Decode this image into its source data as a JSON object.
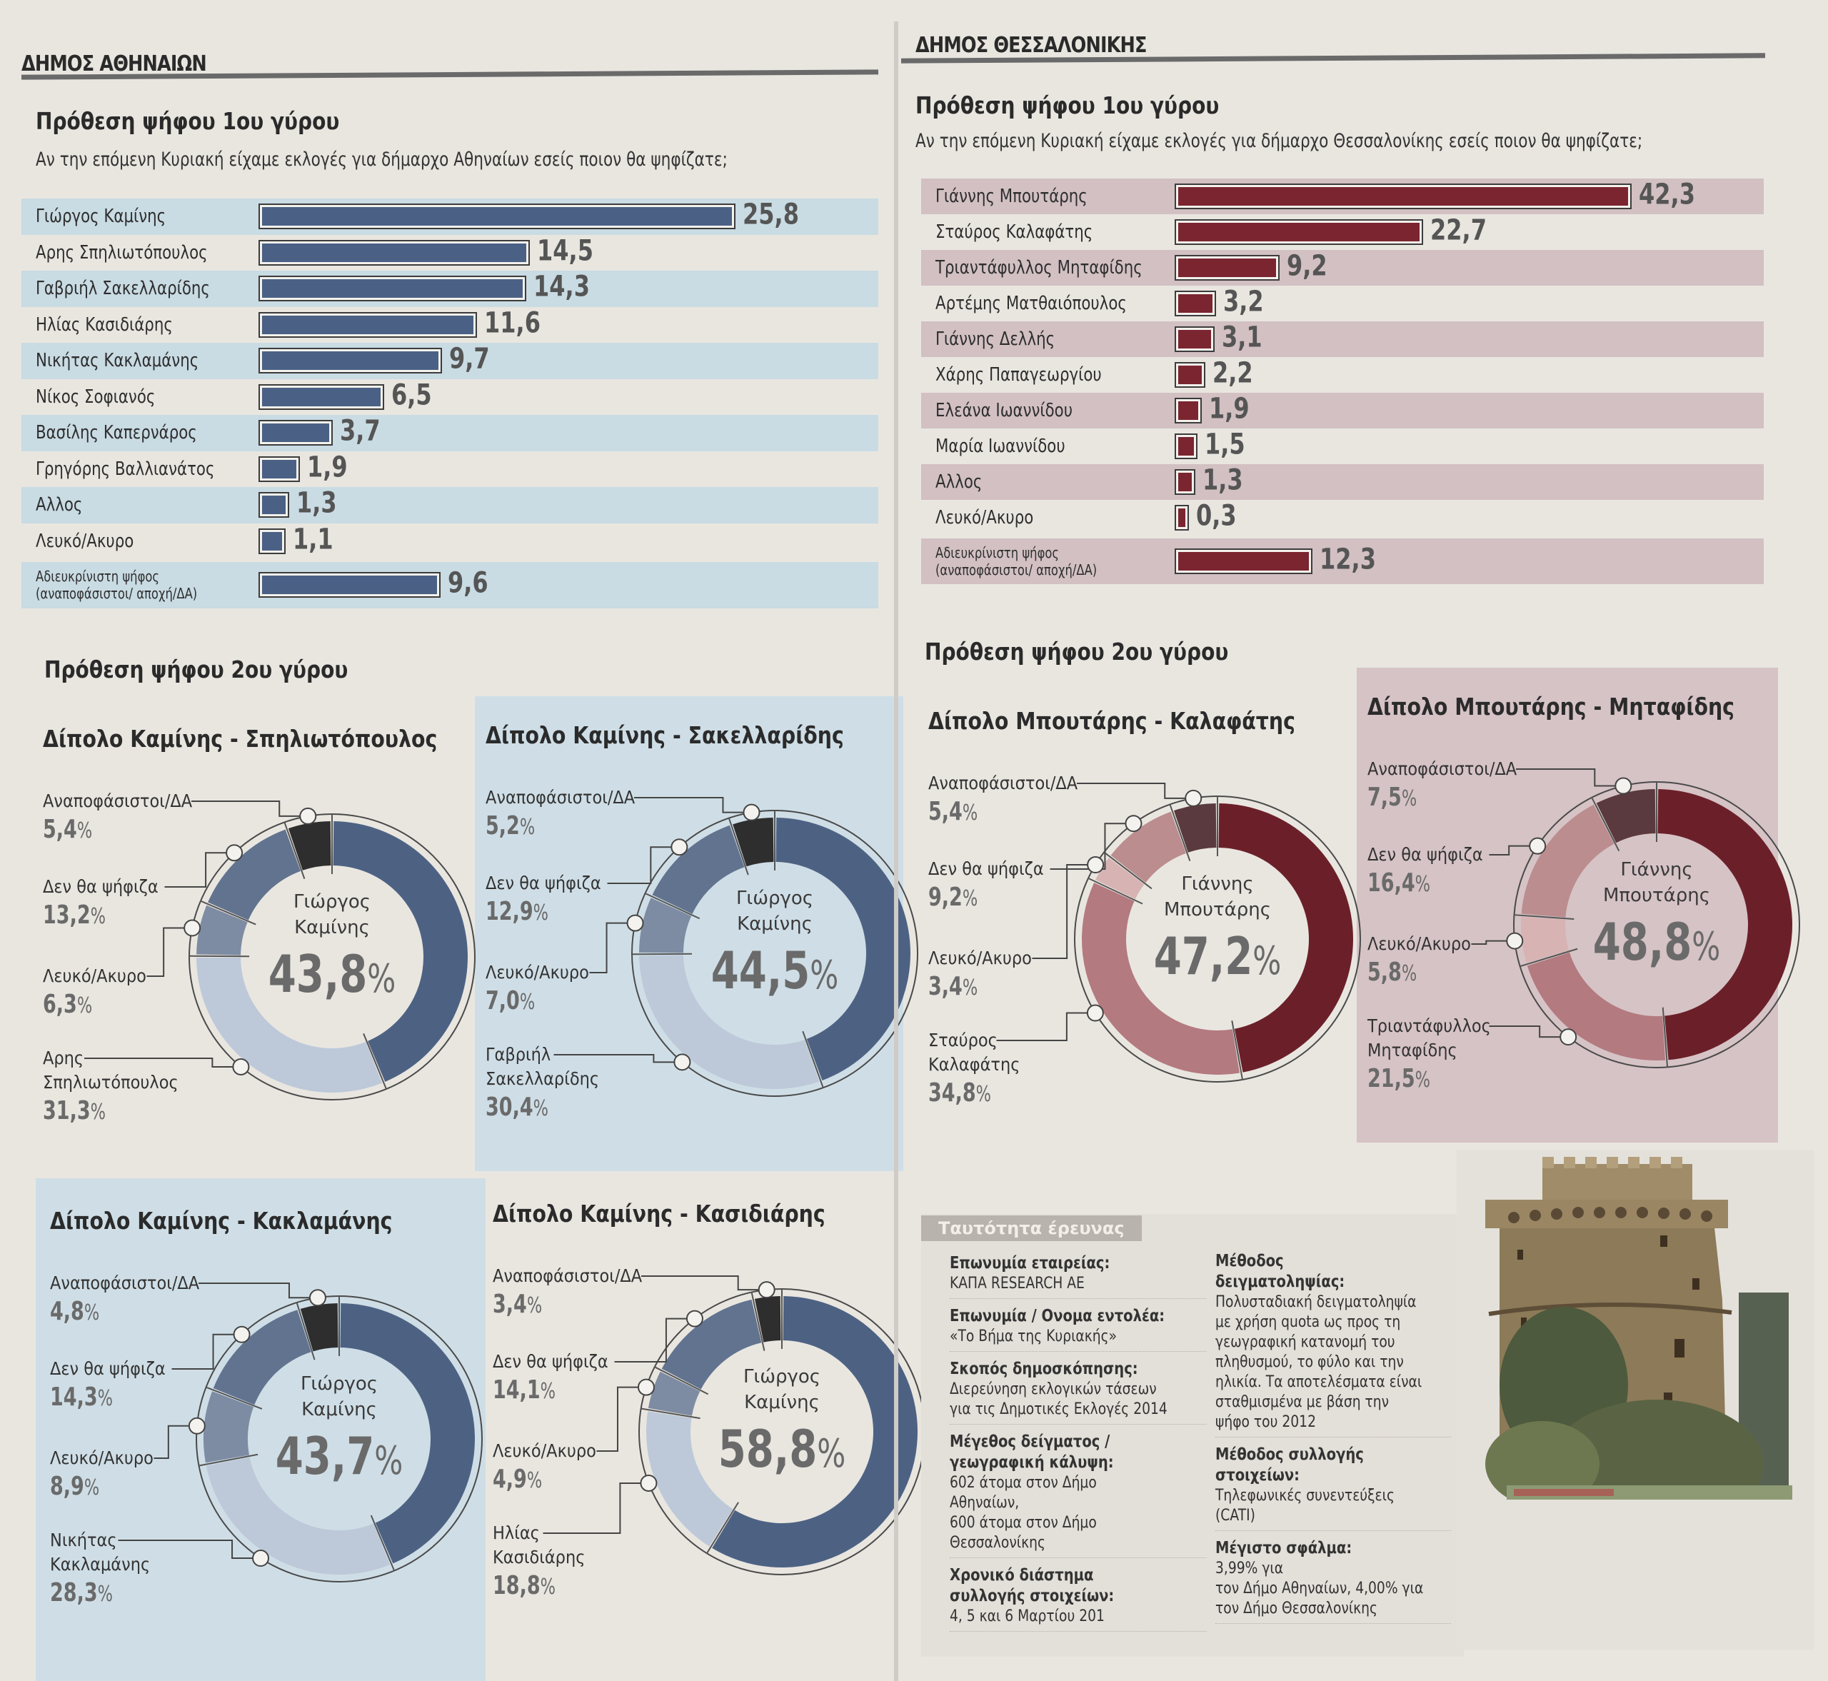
{
  "athens": {
    "section_title": "ΔΗΜΟΣ ΑΘΗΝΑΙΩΝ",
    "round1": {
      "heading": "Πρόθεση ψήφου 1ου γύρου",
      "question": "Αν την επόμενη Κυριακή είχαμε εκλογές για δήμαρχο Αθηναίων εσείς ποιον θα ψηφίζατε;"
    },
    "round2_heading": "Πρόθεση ψήφου 2ου γύρου",
    "bar_color": "#4a6185",
    "stripe_color": "#c9dbe3"
  },
  "thessaloniki": {
    "section_title": "ΔΗΜΟΣ ΘΕΣΣΑΛΟΝΙΚΗΣ",
    "round1": {
      "heading": "Πρόθεση ψήφου 1ου γύρου",
      "question": "Αν την επόμενη Κυριακή είχαμε εκλογές για δήμαρχο Θεσσαλονίκης εσείς ποιον θα ψηφίζατε;"
    },
    "round2_heading": "Πρόθεση ψήφου 2ου γύρου",
    "bar_color": "#7a2530",
    "stripe_color": "#d2c0c3"
  },
  "chart_data": [
    {
      "id": "athens-round1",
      "type": "bar",
      "orientation": "horizontal",
      "title": "Πρόθεση ψήφου 1ου γύρου",
      "subtitle": "Αν την επόμενη Κυριακή είχαμε εκλογές για δήμαρχο Αθηναίων εσείς ποιον θα ψηφίζατε;",
      "categories": [
        "Γιώργος Καμίνης",
        "Αρης Σπηλιωτόπουλος",
        "Γαβριήλ Σακελλαρίδης",
        "Ηλίας Κασιδιάρης",
        "Νικήτας Κακλαμάνης",
        "Νίκος Σοφιανός",
        "Βασίλης Καπερνάρος",
        "Γρηγόρης Βαλλιανάτος",
        "Αλλος",
        "Λευκό/Ακυρο",
        "Αδιευκρίνιστη ψήφος\n(αναποφάσιστοι/ αποχή/ΔΑ)"
      ],
      "values": [
        25.8,
        14.5,
        14.3,
        11.6,
        9.7,
        6.5,
        3.7,
        1.9,
        1.3,
        1.1,
        9.6
      ],
      "value_labels": [
        "25,8",
        "14,5",
        "14,3",
        "11,6",
        "9,7",
        "6,5",
        "3,7",
        "1,9",
        "1,3",
        "1,1",
        "9,6"
      ],
      "xlabel": "",
      "ylabel": "",
      "xlim": [
        0,
        30
      ]
    },
    {
      "id": "thessaloniki-round1",
      "type": "bar",
      "orientation": "horizontal",
      "title": "Πρόθεση ψήφου 1ου γύρου",
      "subtitle": "Αν την επόμενη Κυριακή είχαμε εκλογές για δήμαρχο Θεσσαλονίκης εσείς ποιον θα ψηφίζατε;",
      "categories": [
        "Γιάννης Μπουτάρης",
        "Σταύρος Καλαφάτης",
        "Τριαντάφυλλος Μηταφίδης",
        "Αρτέμης Ματθαιόπουλος",
        "Γιάννης Δελλής",
        "Χάρης Παπαγεωργίου",
        "Ελεάνα Ιωαννίδου",
        "Μαρία Ιωαννίδου",
        "Αλλος",
        "Λευκό/Ακυρο",
        "Αδιευκρίνιστη ψήφος\n(αναποφάσιστοι/ αποχή/ΔΑ)"
      ],
      "values": [
        42.3,
        22.7,
        9.2,
        3.2,
        3.1,
        2.2,
        1.9,
        1.5,
        1.3,
        0.3,
        12.3
      ],
      "value_labels": [
        "42,3",
        "22,7",
        "9,2",
        "3,2",
        "3,1",
        "2,2",
        "1,9",
        "1,5",
        "1,3",
        "0,3",
        "12,3"
      ],
      "xlabel": "",
      "ylabel": "",
      "xlim": [
        0,
        48
      ]
    },
    {
      "id": "athens-kaminis-spiliotopoulos",
      "type": "pie",
      "donut": true,
      "title": "Δίπολο Καμίνης - Σπηλιωτόπουλος",
      "center_label": "Γιώργος\nΚαμίνης",
      "center_value": "43,8",
      "segments": [
        {
          "label": "Γιώργος Καμίνης",
          "value": 43.8,
          "color": "#4d6283"
        },
        {
          "label": "Αρης\nΣπηλιωτόπουλος",
          "value": 31.3,
          "display": "31,3",
          "color": "#bdc9d9"
        },
        {
          "label": "Λευκό/Ακυρο",
          "value": 6.3,
          "display": "6,3",
          "color": "#7d8ca2"
        },
        {
          "label": "Δεν θα ψήφιζα",
          "value": 13.2,
          "display": "13,2",
          "color": "#61738f"
        },
        {
          "label": "Αναποφάσιστοι/ΔΑ",
          "value": 5.4,
          "display": "5,4",
          "color": "#2e2e2e"
        }
      ]
    },
    {
      "id": "athens-kaminis-sakellaridis",
      "type": "pie",
      "donut": true,
      "title": "Δίπολο Καμίνης - Σακελλαρίδης",
      "center_label": "Γιώργος\nΚαμίνης",
      "center_value": "44,5",
      "segments": [
        {
          "label": "Γιώργος Καμίνης",
          "value": 44.5,
          "color": "#4d6283"
        },
        {
          "label": "Γαβριήλ\nΣακελλαρίδης",
          "value": 30.4,
          "display": "30,4",
          "color": "#bdc9d9"
        },
        {
          "label": "Λευκό/Ακυρο",
          "value": 7.0,
          "display": "7,0",
          "color": "#7d8ca2"
        },
        {
          "label": "Δεν θα ψήφιζα",
          "value": 12.9,
          "display": "12,9",
          "color": "#61738f"
        },
        {
          "label": "Αναποφάσιστοι/ΔΑ",
          "value": 5.2,
          "display": "5,2",
          "color": "#2e2e2e"
        }
      ]
    },
    {
      "id": "athens-kaminis-kaklamanis",
      "type": "pie",
      "donut": true,
      "title": "Δίπολο Καμίνης - Κακλαμάνης",
      "center_label": "Γιώργος\nΚαμίνης",
      "center_value": "43,7",
      "segments": [
        {
          "label": "Γιώργος Καμίνης",
          "value": 43.7,
          "color": "#4d6283"
        },
        {
          "label": "Νικήτας\nΚακλαμάνης",
          "value": 28.3,
          "display": "28,3",
          "color": "#bdc9d9"
        },
        {
          "label": "Λευκό/Ακυρο",
          "value": 8.9,
          "display": "8,9",
          "color": "#7d8ca2"
        },
        {
          "label": "Δεν θα ψήφιζα",
          "value": 14.3,
          "display": "14,3",
          "color": "#61738f"
        },
        {
          "label": "Αναποφάσιστοι/ΔΑ",
          "value": 4.8,
          "display": "4,8",
          "color": "#2e2e2e"
        }
      ]
    },
    {
      "id": "athens-kaminis-kasidiaris",
      "type": "pie",
      "donut": true,
      "title": "Δίπολο Καμίνης - Κασιδιάρης",
      "center_label": "Γιώργος\nΚαμίνης",
      "center_value": "58,8",
      "segments": [
        {
          "label": "Γιώργος Καμίνης",
          "value": 58.8,
          "color": "#4d6283"
        },
        {
          "label": "Ηλίας\nΚασιδιάρης",
          "value": 18.8,
          "display": "18,8",
          "color": "#bdc9d9"
        },
        {
          "label": "Λευκό/Ακυρο",
          "value": 4.9,
          "display": "4,9",
          "color": "#7d8ca2"
        },
        {
          "label": "Δεν θα ψήφιζα",
          "value": 14.1,
          "display": "14,1",
          "color": "#61738f"
        },
        {
          "label": "Αναποφάσιστοι/ΔΑ",
          "value": 3.4,
          "display": "3,4",
          "color": "#2e2e2e"
        }
      ]
    },
    {
      "id": "thess-boutaris-kalafatis",
      "type": "pie",
      "donut": true,
      "title": "Δίπολο Μπουτάρης - Καλαφάτης",
      "center_label": "Γιάννης\nΜπουτάρης",
      "center_value": "47,2",
      "segments": [
        {
          "label": "Γιάννης Μπουτάρης",
          "value": 47.2,
          "color": "#6b2029"
        },
        {
          "label": "Σταύρος\nΚαλαφάτης",
          "value": 34.8,
          "display": "34,8",
          "color": "#b37a80"
        },
        {
          "label": "Λευκό/Ακυρο",
          "value": 3.4,
          "display": "3,4",
          "color": "#d8b3b4"
        },
        {
          "label": "Δεν θα ψήφιζα",
          "value": 9.2,
          "display": "9,2",
          "color": "#bb8d8f"
        },
        {
          "label": "Αναποφάσιστοι/ΔΑ",
          "value": 5.4,
          "display": "5,4",
          "color": "#5a3a3e"
        }
      ]
    },
    {
      "id": "thess-boutaris-mitafidis",
      "type": "pie",
      "donut": true,
      "title": "Δίπολο Μπουτάρης - Μηταφίδης",
      "center_label": "Γιάννης\nΜπουτάρης",
      "center_value": "48,8",
      "segments": [
        {
          "label": "Γιάννης Μπουτάρης",
          "value": 48.8,
          "color": "#6b2029"
        },
        {
          "label": "Τριαντάφυλλος\nΜηταφίδης",
          "value": 21.5,
          "display": "21,5",
          "color": "#b37a80"
        },
        {
          "label": "Λευκό/Ακυρο",
          "value": 5.8,
          "display": "5,8",
          "color": "#d8b3b4"
        },
        {
          "label": "Δεν θα ψήφιζα",
          "value": 16.4,
          "display": "16,4",
          "color": "#bb8d8f"
        },
        {
          "label": "Αναποφάσιστοι/ΔΑ",
          "value": 7.5,
          "display": "7,5",
          "color": "#5a3a3e"
        }
      ]
    }
  ],
  "survey": {
    "tab_label": "Ταυτότητα έρευνας",
    "left": [
      {
        "key": "Επωνυμία εταιρείας:",
        "value": "ΚΑΠΑ RESEARCH ΑΕ"
      },
      {
        "key": "Επωνυμία / Ονομα εντολέα:",
        "value": "«Το Βήμα της Κυριακής»"
      },
      {
        "key": "Σκοπός δημοσκόπησης:",
        "value": "Διερεύνηση εκλογικών τάσεων\nγια τις Δημοτικές Εκλογές 2014"
      },
      {
        "key": "Μέγεθος δείγματος /\nγεωγραφική κάλυψη:",
        "value": "602 άτομα στον Δήμο\nΑθηναίων,\n600 άτομα στον Δήμο\nΘεσσαλονίκης"
      },
      {
        "key": "Χρονικό διάστημα\nσυλλογής στοιχείων:",
        "value": "4, 5 και 6 Μαρτίου 201"
      }
    ],
    "right": [
      {
        "key": "Μέθοδος δειγματοληψίας:",
        "value": "Πολυσταδιακή δειγματοληψία\nμε χρήση quota ως προς τη\nγεωγραφική κατανομή του\nπληθυσμού, το φύλο και την\nηλικία. Τα αποτελέσματα είναι\nσταθμισμένα με βάση την\nψήφο του 2012"
      },
      {
        "key": "Μέθοδος συλλογής\nστοιχείων:",
        "value": "Τηλεφωνικές συνεντεύξεις\n(CATI)"
      },
      {
        "key": "Μέγιστο σφάλμα:",
        "value": "3,99% για\nτον Δήμο Αθηναίων, 4,00% για\nτον Δήμο Θεσσαλονίκης"
      }
    ]
  },
  "photo": {
    "subject": "Λευκός Πύργος Θεσσαλονίκης (White Tower photo)"
  }
}
